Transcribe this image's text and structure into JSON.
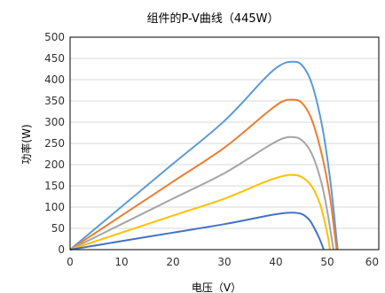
{
  "chart_data": {
    "type": "line",
    "title": "组件的P-V曲线（445W）",
    "xlabel": "电压（V）",
    "ylabel": "功率(W)",
    "xlim": [
      0,
      60
    ],
    "ylim": [
      0,
      500
    ],
    "x_ticks": [
      "0",
      "10",
      "20",
      "30",
      "40",
      "50",
      "60"
    ],
    "y_ticks": [
      "0",
      "50",
      "100",
      "150",
      "200",
      "250",
      "300",
      "350",
      "400",
      "450",
      "500"
    ],
    "grid": "horizontal",
    "legend": "none",
    "series": [
      {
        "color": "#5b9bd5",
        "points": [
          [
            0,
            0
          ],
          [
            10,
            101
          ],
          [
            20,
            202
          ],
          [
            30,
            303
          ],
          [
            38,
            405
          ],
          [
            41,
            435
          ],
          [
            43,
            442
          ],
          [
            45,
            435
          ],
          [
            47,
            390
          ],
          [
            49,
            290
          ],
          [
            50.5,
            170
          ],
          [
            51.5,
            60
          ],
          [
            52,
            0
          ]
        ]
      },
      {
        "color": "#ed7d31",
        "points": [
          [
            0,
            0
          ],
          [
            10,
            80
          ],
          [
            20,
            160
          ],
          [
            30,
            240
          ],
          [
            38,
            320
          ],
          [
            41,
            347
          ],
          [
            43,
            353
          ],
          [
            45,
            346
          ],
          [
            47,
            305
          ],
          [
            49,
            220
          ],
          [
            50.5,
            125
          ],
          [
            51.3,
            50
          ],
          [
            51.8,
            0
          ]
        ]
      },
      {
        "color": "#a5a5a5",
        "points": [
          [
            0,
            0
          ],
          [
            10,
            60
          ],
          [
            20,
            120
          ],
          [
            30,
            180
          ],
          [
            38,
            240
          ],
          [
            41,
            260
          ],
          [
            43,
            265
          ],
          [
            45,
            258
          ],
          [
            47,
            225
          ],
          [
            48.8,
            160
          ],
          [
            50,
            90
          ],
          [
            50.8,
            30
          ],
          [
            51.2,
            0
          ]
        ]
      },
      {
        "color": "#ffc000",
        "points": [
          [
            0,
            0
          ],
          [
            10,
            40
          ],
          [
            20,
            80
          ],
          [
            30,
            120
          ],
          [
            38,
            160
          ],
          [
            41,
            172
          ],
          [
            43,
            176
          ],
          [
            45,
            171
          ],
          [
            47,
            148
          ],
          [
            48.5,
            110
          ],
          [
            49.5,
            65
          ],
          [
            50.2,
            25
          ],
          [
            50.5,
            0
          ]
        ]
      },
      {
        "color": "#4472c4",
        "points": [
          [
            0,
            0
          ],
          [
            10,
            20
          ],
          [
            20,
            40
          ],
          [
            30,
            60
          ],
          [
            38,
            79
          ],
          [
            41,
            85
          ],
          [
            43,
            87
          ],
          [
            45,
            84
          ],
          [
            46.5,
            70
          ],
          [
            47.5,
            50
          ],
          [
            48.5,
            25
          ],
          [
            49.3,
            0
          ]
        ]
      }
    ]
  }
}
